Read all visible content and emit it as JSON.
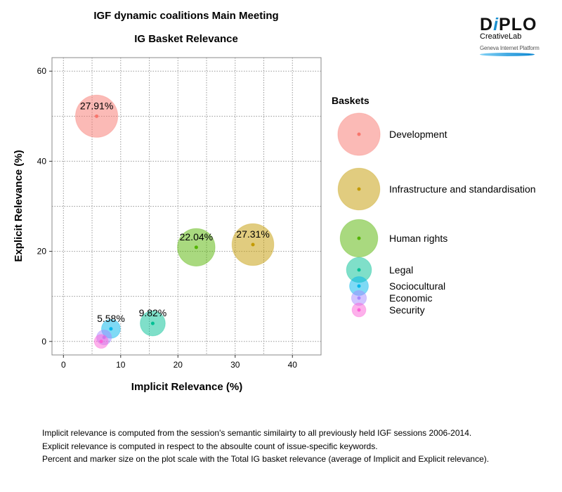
{
  "title_line1": "IGF dynamic coalitions Main Meeting",
  "title_line2": "IG Basket Relevance",
  "logo": {
    "brand": "DiPLO",
    "sub": "CreativeLab",
    "platform": "Geneva Internet Platform"
  },
  "notes": [
    "Implicit relevance is computed from the session's semantic similairty to all previously held IGF sessions 2006-2014.",
    "Explicit relevance is computed in respect to the absoulte count of issue-specific keywords.",
    "Percent and marker size on the plot scale with the Total IG basket relevance (average of Implicit and Explicit relevance)."
  ],
  "chart_data": {
    "type": "scatter",
    "subtype": "bubble",
    "title": "IGF dynamic coalitions Main Meeting\nIG Basket Relevance",
    "xlabel": "Implicit Relevance (%)",
    "ylabel": "Explicit Relevance (%)",
    "xlim": [
      -2,
      45
    ],
    "ylim": [
      -3,
      63
    ],
    "xticks": [
      0,
      10,
      20,
      30,
      40
    ],
    "yticks": [
      0,
      20,
      40,
      60
    ],
    "grid": true,
    "legend_title": "Baskets",
    "legend_position": "right",
    "series": [
      {
        "name": "Development",
        "x": 5.8,
        "y": 50.0,
        "size": 27.91,
        "label": "27.91%",
        "color": "#F8766D"
      },
      {
        "name": "Infrastructure and standardisation",
        "x": 33.1,
        "y": 21.5,
        "size": 27.31,
        "label": "27.31%",
        "color": "#C49A00"
      },
      {
        "name": "Human rights",
        "x": 23.2,
        "y": 20.9,
        "size": 22.04,
        "label": "22.04%",
        "color": "#53B400"
      },
      {
        "name": "Legal",
        "x": 15.6,
        "y": 4.0,
        "size": 9.82,
        "label": "9.82%",
        "color": "#00C094"
      },
      {
        "name": "Sociocultural",
        "x": 8.3,
        "y": 2.8,
        "size": 5.58,
        "label": "5.58%",
        "color": "#00B6EB"
      },
      {
        "name": "Economic",
        "x": 7.1,
        "y": 0.9,
        "size": 3.5,
        "label": "",
        "color": "#A58AFF"
      },
      {
        "name": "Security",
        "x": 6.6,
        "y": 0.0,
        "size": 3.0,
        "label": "",
        "color": "#FB61D7"
      }
    ]
  }
}
